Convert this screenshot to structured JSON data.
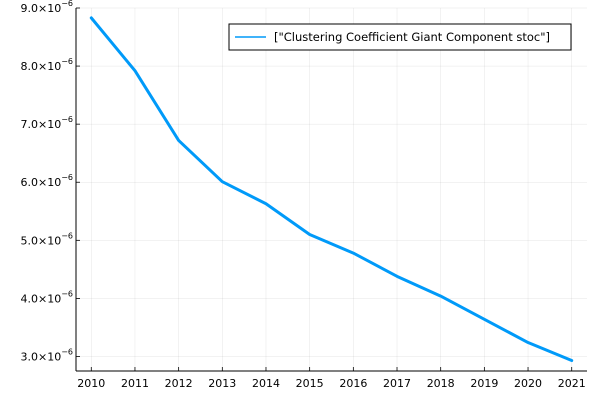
{
  "chart_data": {
    "type": "line",
    "x": [
      2010,
      2011,
      2012,
      2013,
      2014,
      2015,
      2016,
      2017,
      2018,
      2019,
      2020,
      2021
    ],
    "series": [
      {
        "name": "[\"Clustering Coefficient Giant Component stoc\"]",
        "values": [
          8.83e-06,
          7.92e-06,
          6.72e-06,
          6.01e-06,
          5.63e-06,
          5.1e-06,
          4.78e-06,
          4.38e-06,
          4.04e-06,
          3.64e-06,
          3.24e-06,
          2.93e-06
        ]
      }
    ],
    "xticks": [
      "2010",
      "2011",
      "2012",
      "2013",
      "2014",
      "2015",
      "2016",
      "2017",
      "2018",
      "2019",
      "2020",
      "2021"
    ],
    "yticks": [
      {
        "value": 3e-06,
        "mantissa": "3.0×10",
        "exp": "−6"
      },
      {
        "value": 4e-06,
        "mantissa": "4.0×10",
        "exp": "−6"
      },
      {
        "value": 5e-06,
        "mantissa": "5.0×10",
        "exp": "−6"
      },
      {
        "value": 6e-06,
        "mantissa": "6.0×10",
        "exp": "−6"
      },
      {
        "value": 7e-06,
        "mantissa": "7.0×10",
        "exp": "−6"
      },
      {
        "value": 8e-06,
        "mantissa": "8.0×10",
        "exp": "−6"
      },
      {
        "value": 9e-06,
        "mantissa": "9.0×10",
        "exp": "−6"
      }
    ],
    "xlim": [
      2009.65,
      2021.35
    ],
    "ylim": [
      2.75e-06,
      9e-06
    ],
    "grid": true,
    "legend_position": "top-right",
    "title": "",
    "xlabel": "",
    "ylabel": "",
    "line_color": "#009af9"
  }
}
